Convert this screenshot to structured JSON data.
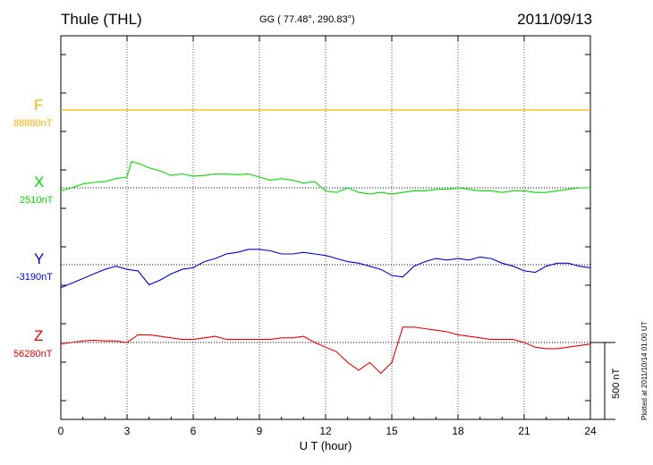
{
  "header": {
    "station": "Thule (THL)",
    "coords": "GG ( 77.48°, 290.83°)",
    "date": "2011/09/13"
  },
  "side_note": "Plotted at 2011/10/14 01:00 UT",
  "colors": {
    "F": "#ffb000",
    "X": "#00dd00",
    "Y": "#0000dd",
    "Z": "#ee0000"
  },
  "chart_data": {
    "type": "line",
    "xlabel": "U T (hour)",
    "xlim": [
      0,
      24
    ],
    "xticks": [
      0,
      3,
      6,
      9,
      12,
      15,
      18,
      21,
      24
    ],
    "scale_bar_label": "500 nT",
    "scale_bar_nT": 500,
    "series": [
      {
        "name": "F",
        "baseline_label": "88880nT",
        "baseline": 88880,
        "x": [
          0,
          24
        ],
        "values": [
          88880,
          88880
        ]
      },
      {
        "name": "X",
        "baseline_label": "2510nT",
        "baseline": 2510,
        "x": [
          0,
          0.5,
          1,
          1.5,
          2,
          2.5,
          3,
          3.2,
          3.5,
          4,
          4.5,
          5,
          5.5,
          6,
          6.5,
          7,
          7.5,
          8,
          8.5,
          9,
          9.5,
          10,
          10.5,
          11,
          11.5,
          12,
          12.5,
          13,
          13.5,
          14,
          14.5,
          15,
          15.5,
          16,
          16.5,
          17,
          17.5,
          18,
          18.5,
          19,
          19.5,
          20,
          20.5,
          21,
          21.5,
          22,
          22.5,
          23,
          23.5,
          24
        ],
        "values": [
          2490,
          2510,
          2535,
          2545,
          2550,
          2570,
          2580,
          2680,
          2670,
          2640,
          2620,
          2590,
          2600,
          2585,
          2590,
          2600,
          2600,
          2595,
          2600,
          2580,
          2560,
          2570,
          2560,
          2540,
          2550,
          2490,
          2480,
          2510,
          2480,
          2470,
          2480,
          2470,
          2480,
          2490,
          2490,
          2500,
          2500,
          2510,
          2500,
          2490,
          2490,
          2480,
          2490,
          2490,
          2480,
          2480,
          2490,
          2500,
          2510,
          2510
        ]
      },
      {
        "name": "Y",
        "baseline_label": "-3190nT",
        "baseline": -3190,
        "x": [
          0,
          0.5,
          1,
          1.5,
          2,
          2.5,
          3,
          3.5,
          4,
          4.5,
          5,
          5.5,
          6,
          6.5,
          7,
          7.5,
          8,
          8.5,
          9,
          9.5,
          10,
          10.5,
          11,
          11.5,
          12,
          12.5,
          13,
          13.5,
          14,
          14.5,
          15,
          15.5,
          16,
          16.5,
          17,
          17.5,
          18,
          18.5,
          19,
          19.5,
          20,
          20.5,
          21,
          21.5,
          22,
          22.5,
          23,
          23.5,
          24
        ],
        "values": [
          -3340,
          -3310,
          -3280,
          -3250,
          -3220,
          -3200,
          -3220,
          -3230,
          -3320,
          -3290,
          -3250,
          -3220,
          -3210,
          -3170,
          -3150,
          -3120,
          -3110,
          -3090,
          -3090,
          -3100,
          -3120,
          -3120,
          -3110,
          -3120,
          -3130,
          -3150,
          -3170,
          -3180,
          -3200,
          -3220,
          -3260,
          -3270,
          -3200,
          -3170,
          -3150,
          -3160,
          -3150,
          -3160,
          -3140,
          -3150,
          -3180,
          -3200,
          -3230,
          -3240,
          -3200,
          -3180,
          -3180,
          -3200,
          -3210
        ]
      },
      {
        "name": "Z",
        "baseline_label": "56280nT",
        "baseline": 56280,
        "x": [
          0,
          0.5,
          1,
          1.5,
          2,
          2.5,
          3,
          3.5,
          4,
          4.5,
          5,
          5.5,
          6,
          6.5,
          7,
          7.5,
          8,
          8.5,
          9,
          9.5,
          10,
          10.5,
          11,
          11.5,
          12,
          12.5,
          13,
          13.5,
          14,
          14.5,
          15,
          15.5,
          16,
          16.5,
          17,
          17.5,
          18,
          18.5,
          19,
          19.5,
          20,
          20.5,
          21,
          21.5,
          22,
          22.5,
          23,
          23.5,
          24
        ],
        "values": [
          56270,
          56280,
          56290,
          56295,
          56290,
          56290,
          56280,
          56330,
          56330,
          56320,
          56310,
          56300,
          56300,
          56310,
          56320,
          56300,
          56300,
          56300,
          56300,
          56300,
          56310,
          56310,
          56320,
          56280,
          56250,
          56220,
          56150,
          56100,
          56150,
          56080,
          56150,
          56380,
          56380,
          56370,
          56360,
          56350,
          56330,
          56320,
          56310,
          56300,
          56300,
          56300,
          56280,
          56250,
          56240,
          56240,
          56250,
          56260,
          56270
        ]
      }
    ]
  }
}
